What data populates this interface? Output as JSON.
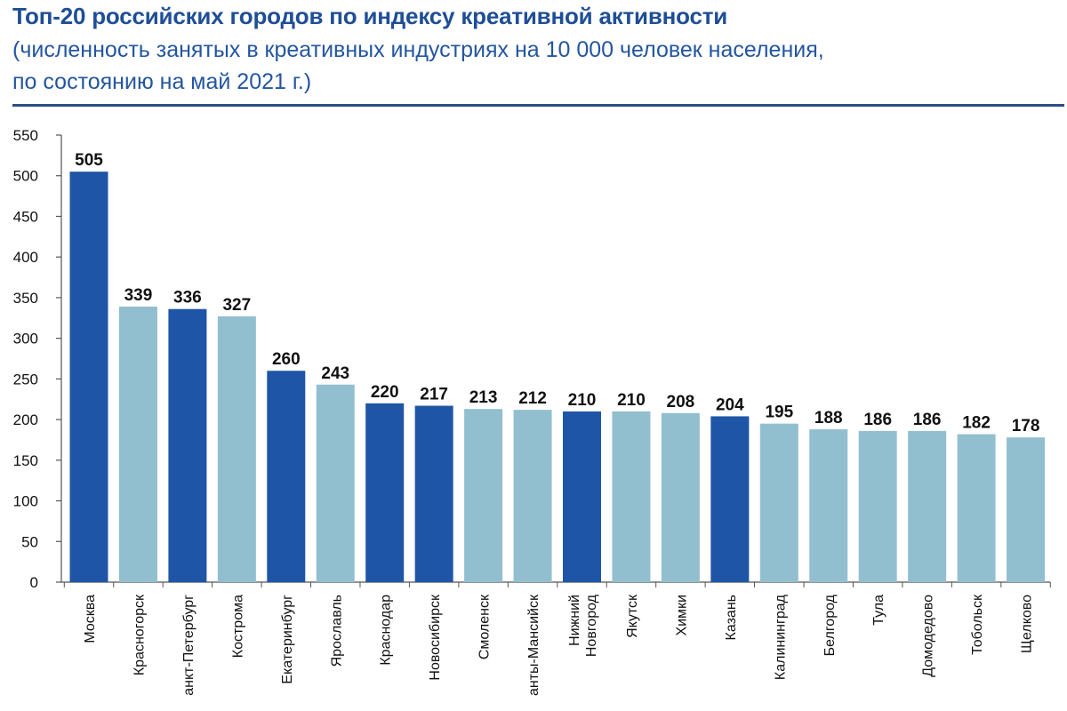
{
  "chart_data": {
    "type": "bar",
    "title": "Топ-20 российских городов по индексу креативной активности",
    "subtitle_lines": [
      "(численность занятых в креативных индустриях на 10 000 человек населения,",
      "по состоянию на май 2021 г.)"
    ],
    "categories": [
      [
        "Москва"
      ],
      [
        "Красногорск"
      ],
      [
        "анкт-Петербург"
      ],
      [
        "Кострома"
      ],
      [
        "Екатеринбург"
      ],
      [
        "Ярославль"
      ],
      [
        "Краснодар"
      ],
      [
        "Новосибирск"
      ],
      [
        "Смоленск"
      ],
      [
        "анты-Мансийск"
      ],
      [
        "Нижний",
        "Новгород"
      ],
      [
        "Якутск"
      ],
      [
        "Химки"
      ],
      [
        "Казань"
      ],
      [
        "Калининград"
      ],
      [
        "Белгород"
      ],
      [
        "Тула"
      ],
      [
        "Домодедово"
      ],
      [
        "Тобольск"
      ],
      [
        "Щелково"
      ]
    ],
    "values": [
      505,
      339,
      336,
      327,
      260,
      243,
      220,
      217,
      213,
      212,
      210,
      210,
      208,
      204,
      195,
      188,
      186,
      186,
      182,
      178
    ],
    "data_labels": [
      "505",
      "339",
      "336",
      "327",
      "260",
      "243",
      "220",
      "217",
      "213",
      "212",
      "210",
      "210",
      "208",
      "204",
      "195",
      "188",
      "186",
      "186",
      "182",
      "178"
    ],
    "highlight": [
      true,
      false,
      true,
      false,
      true,
      false,
      true,
      true,
      false,
      false,
      true,
      false,
      false,
      true,
      false,
      false,
      false,
      false,
      false,
      false
    ],
    "ylim": [
      0,
      550
    ],
    "yticks": [
      0,
      50,
      100,
      150,
      200,
      250,
      300,
      350,
      400,
      450,
      500,
      550
    ],
    "xlabel": "",
    "ylabel": "",
    "grid": false,
    "legend": "none",
    "colors": {
      "highlight": "#1f55a6",
      "regular": "#92bfd0",
      "title": "#1f4e96",
      "subtitle": "#2456a0",
      "rule": "#2b4f86",
      "axis": "#555555",
      "text": "#111111"
    }
  }
}
